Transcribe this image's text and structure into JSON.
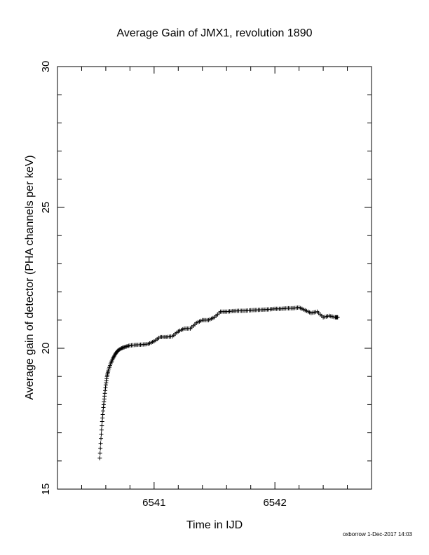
{
  "chart_data": {
    "type": "scatter",
    "title": "Average Gain of JMX1, revolution 1890",
    "xlabel": "Time in IJD",
    "ylabel": "Average gain of detector (PHA channels per keV)",
    "xlim": [
      6540.2,
      6542.8
    ],
    "ylim": [
      15,
      30
    ],
    "x_ticks": [
      6541,
      6542
    ],
    "x_tick_labels": [
      "6541",
      "6542"
    ],
    "y_ticks": [
      15,
      20,
      25,
      30
    ],
    "y_tick_labels": [
      "15",
      "20",
      "25",
      "30"
    ],
    "marker": "+",
    "grid": false,
    "series": [
      {
        "x": [
          6540.55,
          6540.56,
          6540.57,
          6540.58,
          6540.59,
          6540.6,
          6540.61,
          6540.62,
          6540.64,
          6540.66,
          6540.68,
          6540.7,
          6540.73,
          6540.76,
          6540.8,
          6540.85,
          6540.9,
          6540.95,
          6541.0,
          6541.05,
          6541.1,
          6541.15,
          6541.2,
          6541.25,
          6541.3,
          6541.35,
          6541.4,
          6541.45,
          6541.5,
          6541.55,
          6541.6,
          6541.65,
          6541.7,
          6541.75,
          6541.8,
          6541.85,
          6541.9,
          6541.95,
          6542.0,
          6542.05,
          6542.1,
          6542.15,
          6542.2,
          6542.25,
          6542.3,
          6542.35,
          6542.4,
          6542.45,
          6542.5,
          6542.52
        ],
        "y": [
          16.1,
          16.8,
          17.4,
          17.9,
          18.3,
          18.7,
          19.0,
          19.2,
          19.45,
          19.65,
          19.8,
          19.92,
          20.0,
          20.05,
          20.1,
          20.12,
          20.13,
          20.15,
          20.25,
          20.4,
          20.4,
          20.42,
          20.6,
          20.7,
          20.7,
          20.9,
          21.0,
          21.0,
          21.1,
          21.3,
          21.3,
          21.32,
          21.33,
          21.33,
          21.35,
          21.36,
          21.37,
          21.38,
          21.4,
          21.4,
          21.42,
          21.42,
          21.45,
          21.35,
          21.25,
          21.3,
          21.1,
          21.15,
          21.1,
          21.1
        ]
      }
    ]
  },
  "footer": {
    "signature": "oxborrow 1-Dec-2017 14:03"
  }
}
